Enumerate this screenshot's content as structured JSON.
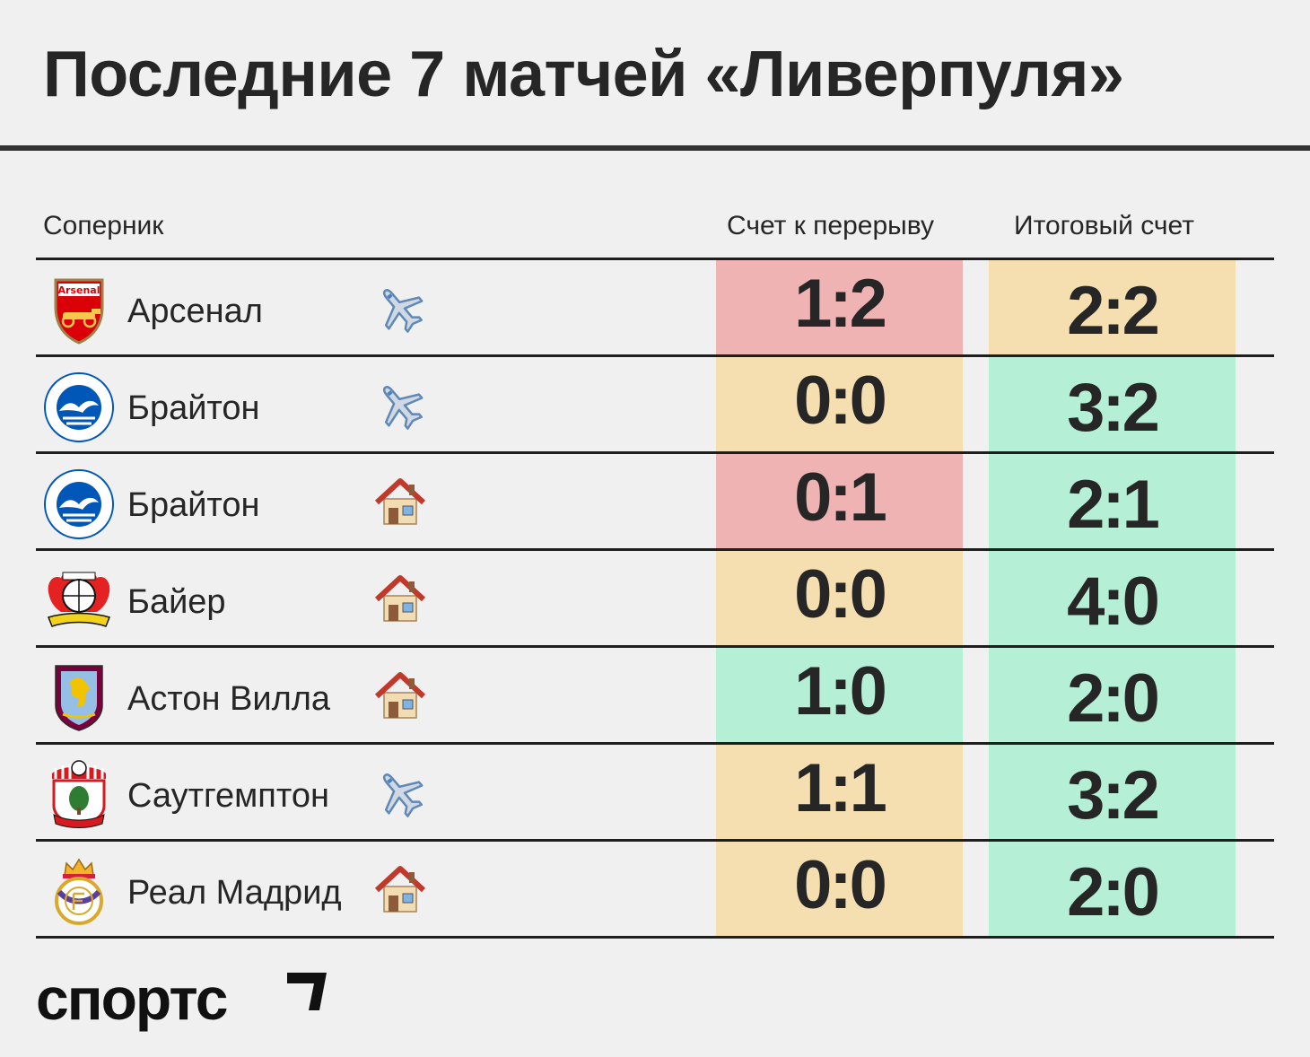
{
  "title": "Последние 7 матчей «Ливерпуля»",
  "columns": {
    "opponent": "Соперник",
    "halftime": "Счет к перерыву",
    "final": "Итоговый счет"
  },
  "colors": {
    "loss": "#f0b3b3",
    "draw": "#f5dfb0",
    "win": "#b5f0d6"
  },
  "matches": [
    {
      "opponent": "Арсенал",
      "logo": "arsenal-crest",
      "venue": "away",
      "venue_icon": "airplane-icon",
      "halftime": "1:2",
      "halftime_result": "loss",
      "final": "2:2",
      "final_result": "draw"
    },
    {
      "opponent": "Брайтон",
      "logo": "brighton-crest",
      "venue": "away",
      "venue_icon": "airplane-icon",
      "halftime": "0:0",
      "halftime_result": "draw",
      "final": "3:2",
      "final_result": "win"
    },
    {
      "opponent": "Брайтон",
      "logo": "brighton-crest",
      "venue": "home",
      "venue_icon": "house-icon",
      "halftime": "0:1",
      "halftime_result": "loss",
      "final": "2:1",
      "final_result": "win"
    },
    {
      "opponent": "Байер",
      "logo": "leverkusen-crest",
      "venue": "home",
      "venue_icon": "house-icon",
      "halftime": "0:0",
      "halftime_result": "draw",
      "final": "4:0",
      "final_result": "win"
    },
    {
      "opponent": "Астон Вилла",
      "logo": "aston-villa-crest",
      "venue": "home",
      "venue_icon": "house-icon",
      "halftime": "1:0",
      "halftime_result": "win",
      "final": "2:0",
      "final_result": "win"
    },
    {
      "opponent": "Саутгемптон",
      "logo": "southampton-crest",
      "venue": "away",
      "venue_icon": "airplane-icon",
      "halftime": "1:1",
      "halftime_result": "draw",
      "final": "3:2",
      "final_result": "win"
    },
    {
      "opponent": "Реал Мадрид",
      "logo": "real-madrid-crest",
      "venue": "home",
      "venue_icon": "house-icon",
      "halftime": "0:0",
      "halftime_result": "draw",
      "final": "2:0",
      "final_result": "win"
    }
  ],
  "brand": "спортс"
}
